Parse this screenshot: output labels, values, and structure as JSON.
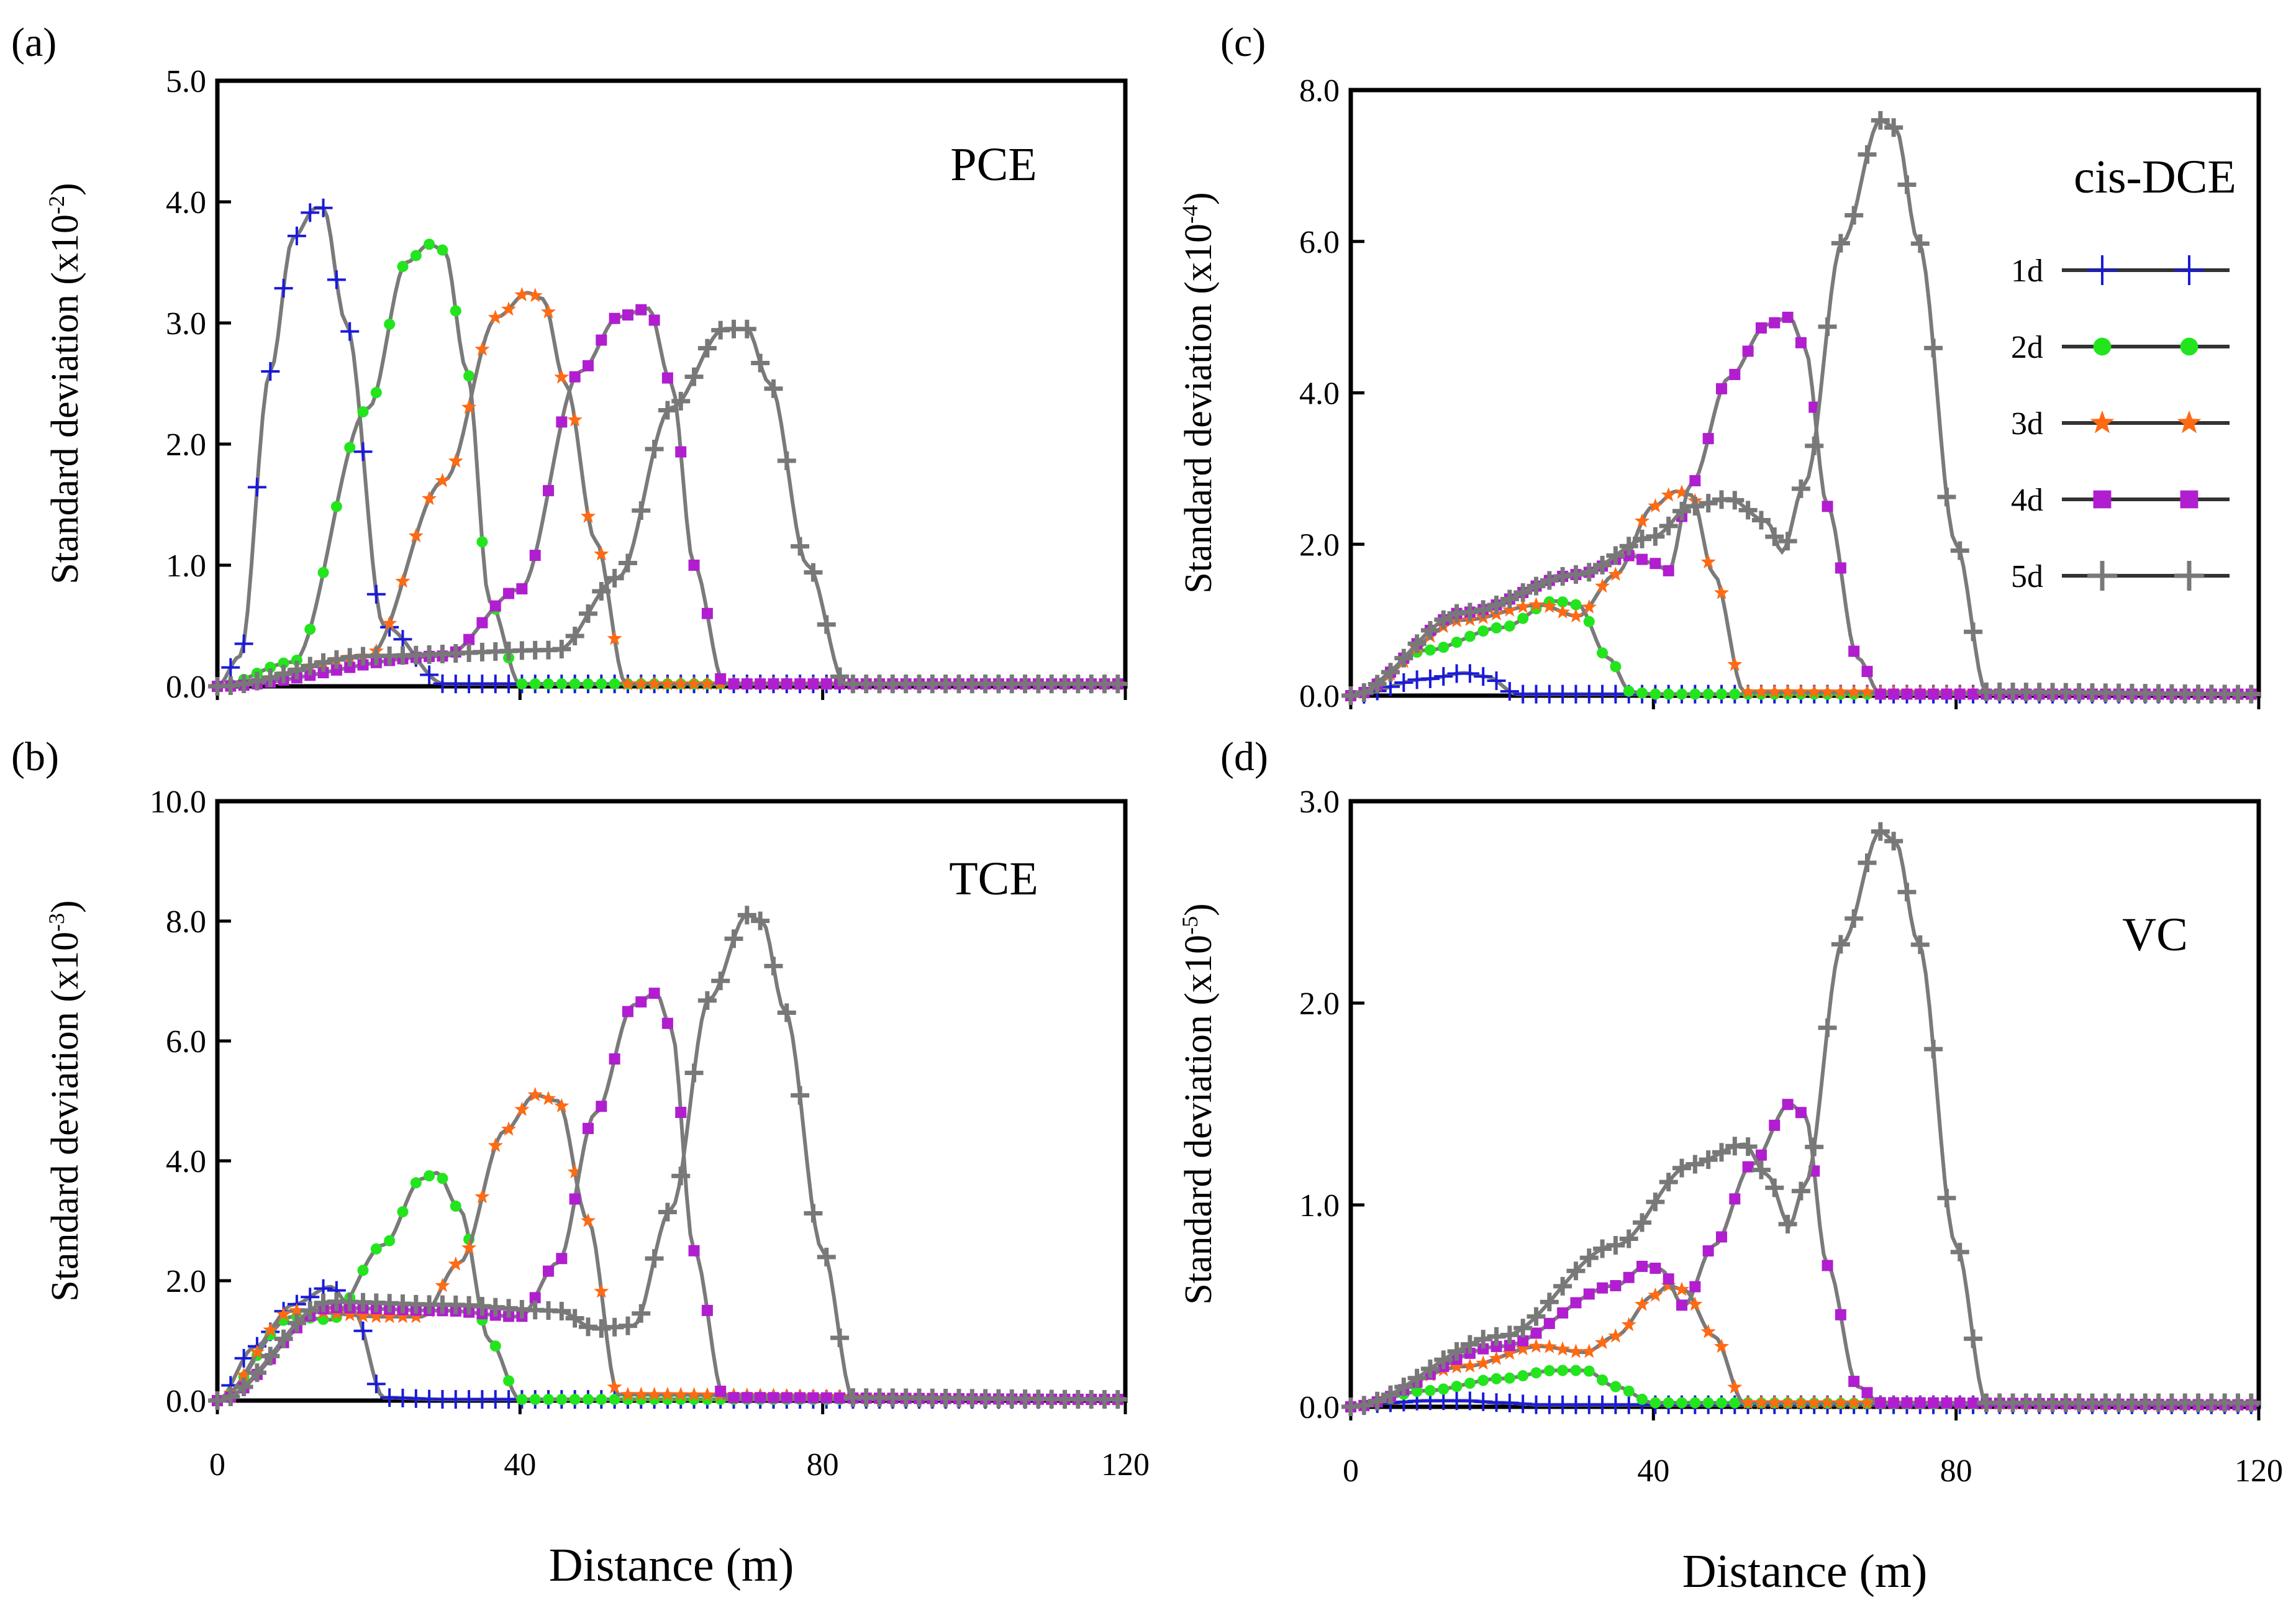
{
  "figure": {
    "xlabel": "Distance (m)",
    "ylabel_text": "Standard deviation (x10",
    "ylabel_close": ")",
    "legend": [
      "1d",
      "2d",
      "3d",
      "4d",
      "5d"
    ]
  },
  "series_style": [
    {
      "name": "1d",
      "color": "#1a1adb",
      "marker": "plus-thin"
    },
    {
      "name": "2d",
      "color": "#22e51d",
      "marker": "circle"
    },
    {
      "name": "3d",
      "color": "#ff6a13",
      "marker": "star"
    },
    {
      "name": "4d",
      "color": "#b01ecf",
      "marker": "square"
    },
    {
      "name": "5d",
      "color": "#787878",
      "marker": "plus-thick"
    }
  ],
  "chart_data": [
    {
      "panel_label": "(a)",
      "type": "line",
      "title": "PCE",
      "xlabel": "",
      "ylabel_exp": "-2",
      "xlim": [
        0,
        120
      ],
      "ylim": [
        0,
        5
      ],
      "xticks": [],
      "yticks": [
        "0.0",
        "1.0",
        "2.0",
        "3.0",
        "4.0",
        "5.0"
      ],
      "series": [
        {
          "name": "1d",
          "x": [
            0,
            3,
            7,
            10,
            13,
            14,
            17,
            22,
            30,
            120
          ],
          "y": [
            0,
            0.25,
            2.6,
            3.7,
            3.95,
            3.95,
            3.0,
            0.5,
            0.02,
            0.02
          ]
        },
        {
          "name": "2d",
          "x": [
            0,
            10,
            20,
            25,
            28,
            30,
            33,
            36,
            40,
            120
          ],
          "y": [
            0,
            0.2,
            2.3,
            3.5,
            3.65,
            3.6,
            2.6,
            0.7,
            0.02,
            0.02
          ]
        },
        {
          "name": "3d",
          "x": [
            0,
            20,
            30,
            37,
            41,
            43,
            46,
            50,
            54,
            120
          ],
          "y": [
            0,
            0.25,
            1.7,
            3.05,
            3.25,
            3.2,
            2.5,
            1.2,
            0.02,
            0.02
          ]
        },
        {
          "name": "4d",
          "x": [
            0,
            30,
            40,
            48,
            53,
            57,
            60,
            63,
            67,
            120
          ],
          "y": [
            0,
            0.25,
            0.8,
            2.6,
            3.05,
            3.12,
            2.5,
            1.0,
            0.02,
            0.02
          ]
        },
        {
          "name": "5d",
          "x": [
            0,
            20,
            45,
            53,
            60,
            67,
            70,
            73,
            78,
            83,
            120
          ],
          "y": [
            0,
            0.25,
            0.3,
            0.9,
            2.3,
            2.95,
            2.95,
            2.5,
            1.0,
            0.02,
            0.02
          ]
        }
      ]
    },
    {
      "panel_label": "(b)",
      "type": "line",
      "title": "TCE",
      "xlabel": "Distance (m)",
      "ylabel_exp": "-3",
      "xlim": [
        0,
        120
      ],
      "ylim": [
        0,
        10
      ],
      "xticks": [
        "0",
        "40",
        "80",
        "120"
      ],
      "yticks": [
        "0.0",
        "2.0",
        "4.0",
        "6.0",
        "8.0",
        "10.0"
      ],
      "series": [
        {
          "name": "1d",
          "x": [
            0,
            5,
            10,
            15,
            18,
            22,
            30,
            120
          ],
          "y": [
            0,
            0.9,
            1.6,
            1.9,
            1.5,
            0.05,
            0.02,
            0.02
          ]
        },
        {
          "name": "2d",
          "x": [
            0,
            10,
            15,
            22,
            27,
            29,
            32,
            36,
            40,
            120
          ],
          "y": [
            0,
            1.4,
            1.35,
            2.6,
            3.7,
            3.8,
            3.2,
            1.0,
            0.02,
            0.02
          ]
        },
        {
          "name": "3d",
          "x": [
            0,
            10,
            22,
            27,
            32,
            38,
            42,
            45,
            49,
            53,
            120
          ],
          "y": [
            0,
            1.5,
            1.4,
            1.4,
            2.3,
            4.5,
            5.1,
            5.0,
            3.0,
            0.1,
            0.02
          ]
        },
        {
          "name": "4d",
          "x": [
            0,
            15,
            30,
            40,
            45,
            50,
            55,
            58,
            60,
            63,
            67,
            120
          ],
          "y": [
            0,
            1.55,
            1.5,
            1.4,
            2.3,
            4.8,
            6.6,
            6.8,
            6.2,
            2.5,
            0.05,
            0.02
          ]
        },
        {
          "name": "5d",
          "x": [
            0,
            15,
            30,
            45,
            50,
            55,
            60,
            65,
            70,
            72,
            75,
            80,
            84,
            120
          ],
          "y": [
            0,
            1.65,
            1.6,
            1.5,
            1.2,
            1.25,
            3.2,
            6.7,
            8.1,
            8.0,
            6.5,
            2.5,
            0.05,
            0.02
          ]
        }
      ]
    },
    {
      "panel_label": "(c)",
      "type": "line",
      "title": "cis-DCE",
      "xlabel": "",
      "ylabel_exp": "-4",
      "xlim": [
        0,
        120
      ],
      "ylim": [
        0,
        8
      ],
      "xticks": [],
      "yticks": [
        "0.0",
        "2.0",
        "4.0",
        "6.0",
        "8.0"
      ],
      "series": [
        {
          "name": "1d",
          "x": [
            0,
            10,
            15,
            18,
            22,
            30,
            120
          ],
          "y": [
            0,
            0.22,
            0.3,
            0.25,
            0.02,
            0.02,
            0.02
          ]
        },
        {
          "name": "2d",
          "x": [
            0,
            10,
            20,
            27,
            30,
            34,
            37,
            40,
            120
          ],
          "y": [
            0,
            0.6,
            0.9,
            1.25,
            1.2,
            0.5,
            0.05,
            0.02,
            0.02
          ]
        },
        {
          "name": "3d",
          "x": [
            0,
            15,
            25,
            30,
            35,
            40,
            43,
            45,
            48,
            52,
            120
          ],
          "y": [
            0,
            1.0,
            1.2,
            1.05,
            1.6,
            2.5,
            2.7,
            2.65,
            1.6,
            0.05,
            0.02
          ]
        },
        {
          "name": "4d",
          "x": [
            0,
            15,
            30,
            37,
            40,
            42,
            45,
            50,
            55,
            58,
            60,
            63,
            67,
            70,
            120
          ],
          "y": [
            0,
            1.1,
            1.6,
            1.85,
            1.75,
            1.65,
            2.8,
            4.2,
            4.9,
            5.0,
            4.6,
            2.5,
            0.5,
            0.02,
            0.02
          ]
        },
        {
          "name": "5d",
          "x": [
            0,
            15,
            30,
            40,
            45,
            50,
            55,
            57,
            60,
            65,
            70,
            72,
            75,
            80,
            84,
            120
          ],
          "y": [
            0,
            1.1,
            1.6,
            2.1,
            2.5,
            2.6,
            2.3,
            1.9,
            2.8,
            6.0,
            7.6,
            7.5,
            6.0,
            2.0,
            0.05,
            0.02
          ]
        }
      ]
    },
    {
      "panel_label": "(d)",
      "type": "line",
      "title": "VC",
      "xlabel": "Distance (m)",
      "ylabel_exp": "-5",
      "xlim": [
        0,
        120
      ],
      "ylim": [
        0,
        3
      ],
      "xticks": [
        "0",
        "40",
        "80",
        "120"
      ],
      "yticks": [
        "0.0",
        "1.0",
        "2.0",
        "3.0"
      ],
      "series": [
        {
          "name": "1d",
          "x": [
            0,
            5,
            10,
            15,
            20,
            25,
            120
          ],
          "y": [
            0,
            0.02,
            0.03,
            0.03,
            0.02,
            0.01,
            0.01
          ]
        },
        {
          "name": "2d",
          "x": [
            0,
            10,
            20,
            27,
            31,
            35,
            40,
            120
          ],
          "y": [
            0,
            0.08,
            0.14,
            0.18,
            0.18,
            0.1,
            0.02,
            0.01
          ]
        },
        {
          "name": "3d",
          "x": [
            0,
            15,
            25,
            31,
            35,
            40,
            42,
            44,
            48,
            52,
            120
          ],
          "y": [
            0,
            0.2,
            0.3,
            0.27,
            0.35,
            0.55,
            0.6,
            0.58,
            0.35,
            0.02,
            0.01
          ]
        },
        {
          "name": "4d",
          "x": [
            0,
            20,
            35,
            39,
            41,
            44,
            48,
            53,
            58,
            60,
            63,
            67,
            70,
            120
          ],
          "y": [
            0,
            0.3,
            0.6,
            0.7,
            0.68,
            0.5,
            0.8,
            1.2,
            1.5,
            1.45,
            0.7,
            0.1,
            0.02,
            0.01
          ]
        },
        {
          "name": "5d",
          "x": [
            0,
            20,
            35,
            45,
            52,
            55,
            58,
            60,
            65,
            70,
            72,
            75,
            80,
            84,
            120
          ],
          "y": [
            0,
            0.35,
            0.8,
            1.2,
            1.3,
            1.15,
            0.9,
            1.1,
            2.3,
            2.85,
            2.8,
            2.3,
            0.8,
            0.02,
            0.02
          ]
        }
      ]
    }
  ]
}
